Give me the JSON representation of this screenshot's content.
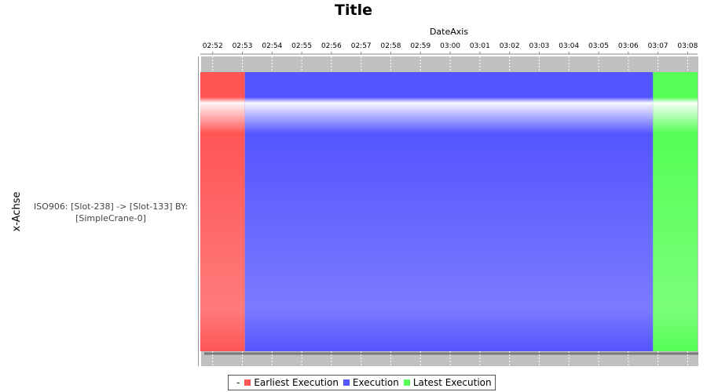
{
  "chart_data": {
    "type": "gantt",
    "title": "Title",
    "xlabel": "DateAxis",
    "ylabel": "x-Achse",
    "date": "time",
    "xlim": [
      "02:51:35",
      "03:08:20"
    ],
    "x_tick_labels": [
      "02:52",
      "02:53",
      "02:54",
      "02:55",
      "02:56",
      "02:57",
      "02:58",
      "02:59",
      "03:00",
      "03:01",
      "03:02",
      "03:03",
      "03:04",
      "03:05",
      "03:06",
      "03:07",
      "03:08"
    ],
    "categories": [
      "ISO906: [Slot-238] -> [Slot-133] BY: [SimpleCrane-0]"
    ],
    "series": [
      {
        "name": "Earliest Execution",
        "color": "#ff5555",
        "start": "02:51:35",
        "end": "02:53:05"
      },
      {
        "name": "Execution",
        "color": "#5555ff",
        "start": "02:53:05",
        "end": "03:06:50"
      },
      {
        "name": "Latest Execution",
        "color": "#55ff55",
        "start": "03:06:50",
        "end": "03:08:20"
      }
    ],
    "legend": {
      "position": "bottom",
      "prefix": "-"
    },
    "grid": true
  }
}
